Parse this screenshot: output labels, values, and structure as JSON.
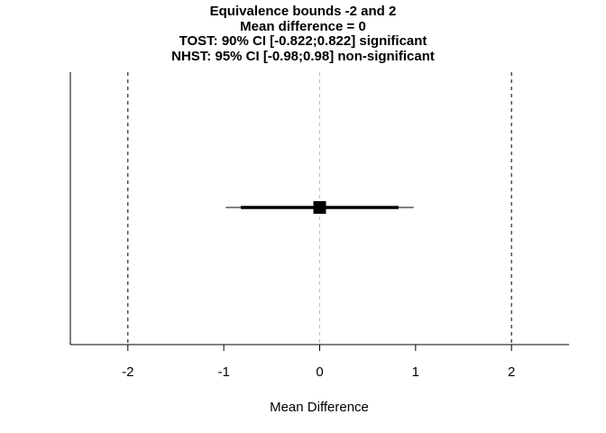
{
  "chart_data": {
    "type": "scatter",
    "title_lines": [
      "Equivalence bounds -2 and 2",
      "Mean difference = 0",
      "TOST: 90% CI [-0.822;0.822] significant",
      "NHST: 95% CI [-0.98;0.98] non-significant"
    ],
    "xlabel": "Mean Difference",
    "xlim": [
      -2.6,
      2.6
    ],
    "x_ticks": [
      -2,
      -1,
      0,
      1,
      2
    ],
    "x_tick_labels": [
      "-2",
      "-1",
      "0",
      "1",
      "2"
    ],
    "point_estimate": 0,
    "ci_90": [
      -0.822,
      0.822
    ],
    "ci_95": [
      -0.98,
      0.98
    ],
    "equivalence_bounds": [
      -2,
      2
    ],
    "reference_line": 0,
    "grid": false,
    "colors": {
      "estimate": "#000000",
      "bounds": "#000000",
      "reference": "#bebebe"
    }
  }
}
